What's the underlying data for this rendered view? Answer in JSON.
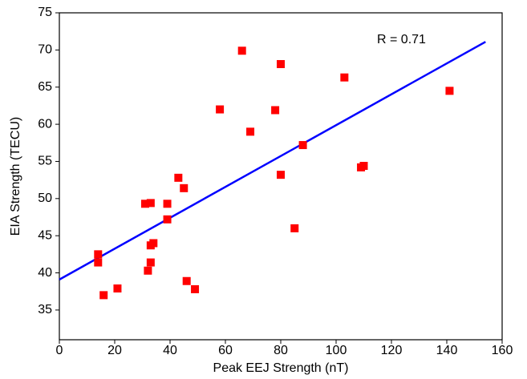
{
  "chart_data": {
    "type": "scatter",
    "xlabel": "Peak EEJ Strength (nT)",
    "ylabel": "EIA Strength (TECU)",
    "annotation": "R = 0.71",
    "xlim": [
      0,
      160
    ],
    "xticks": [
      0,
      20,
      40,
      60,
      80,
      100,
      120,
      140,
      160
    ],
    "ylim": [
      31,
      75
    ],
    "yticks": [
      35,
      40,
      45,
      50,
      55,
      60,
      65,
      70,
      75
    ],
    "series": [
      {
        "color": "#ff0000",
        "x": [
          14,
          14,
          16,
          21,
          31,
          32,
          33,
          33,
          33,
          34,
          39,
          39,
          43,
          45,
          46,
          49,
          58,
          66,
          69,
          78,
          80,
          80,
          85,
          88,
          103,
          109,
          110,
          141
        ],
        "values": [
          42.5,
          41.4,
          37,
          37.9,
          49.3,
          40.3,
          49.4,
          43.7,
          41.4,
          44,
          49.3,
          47.2,
          52.8,
          51.4,
          38.9,
          37.8,
          62,
          69.9,
          59,
          61.9,
          68.1,
          53.2,
          46,
          57.2,
          66.3,
          54.2,
          54.4,
          64.5
        ]
      }
    ],
    "fit_line": {
      "color": "#0000ff",
      "x": [
        0,
        154
      ],
      "values": [
        39.1,
        71.1
      ]
    }
  }
}
